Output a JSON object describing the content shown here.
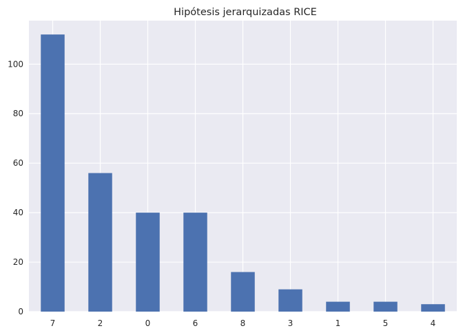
{
  "chart_data": {
    "type": "bar",
    "title": "Hipótesis jerarquizadas RICE",
    "xlabel": "",
    "ylabel": "",
    "categories": [
      "7",
      "2",
      "0",
      "6",
      "8",
      "3",
      "1",
      "5",
      "4"
    ],
    "values": [
      112,
      56,
      40,
      40,
      16,
      9,
      4,
      4,
      3
    ],
    "ylim": [
      0,
      117.6
    ],
    "yticks": [
      "0",
      "20",
      "40",
      "60",
      "80",
      "100"
    ],
    "grid": true,
    "legend": "none"
  },
  "colors": {
    "bar": "#4c72b0",
    "plot_background": "#eaeaf2",
    "grid": "#ffffff",
    "text": "#262626"
  }
}
